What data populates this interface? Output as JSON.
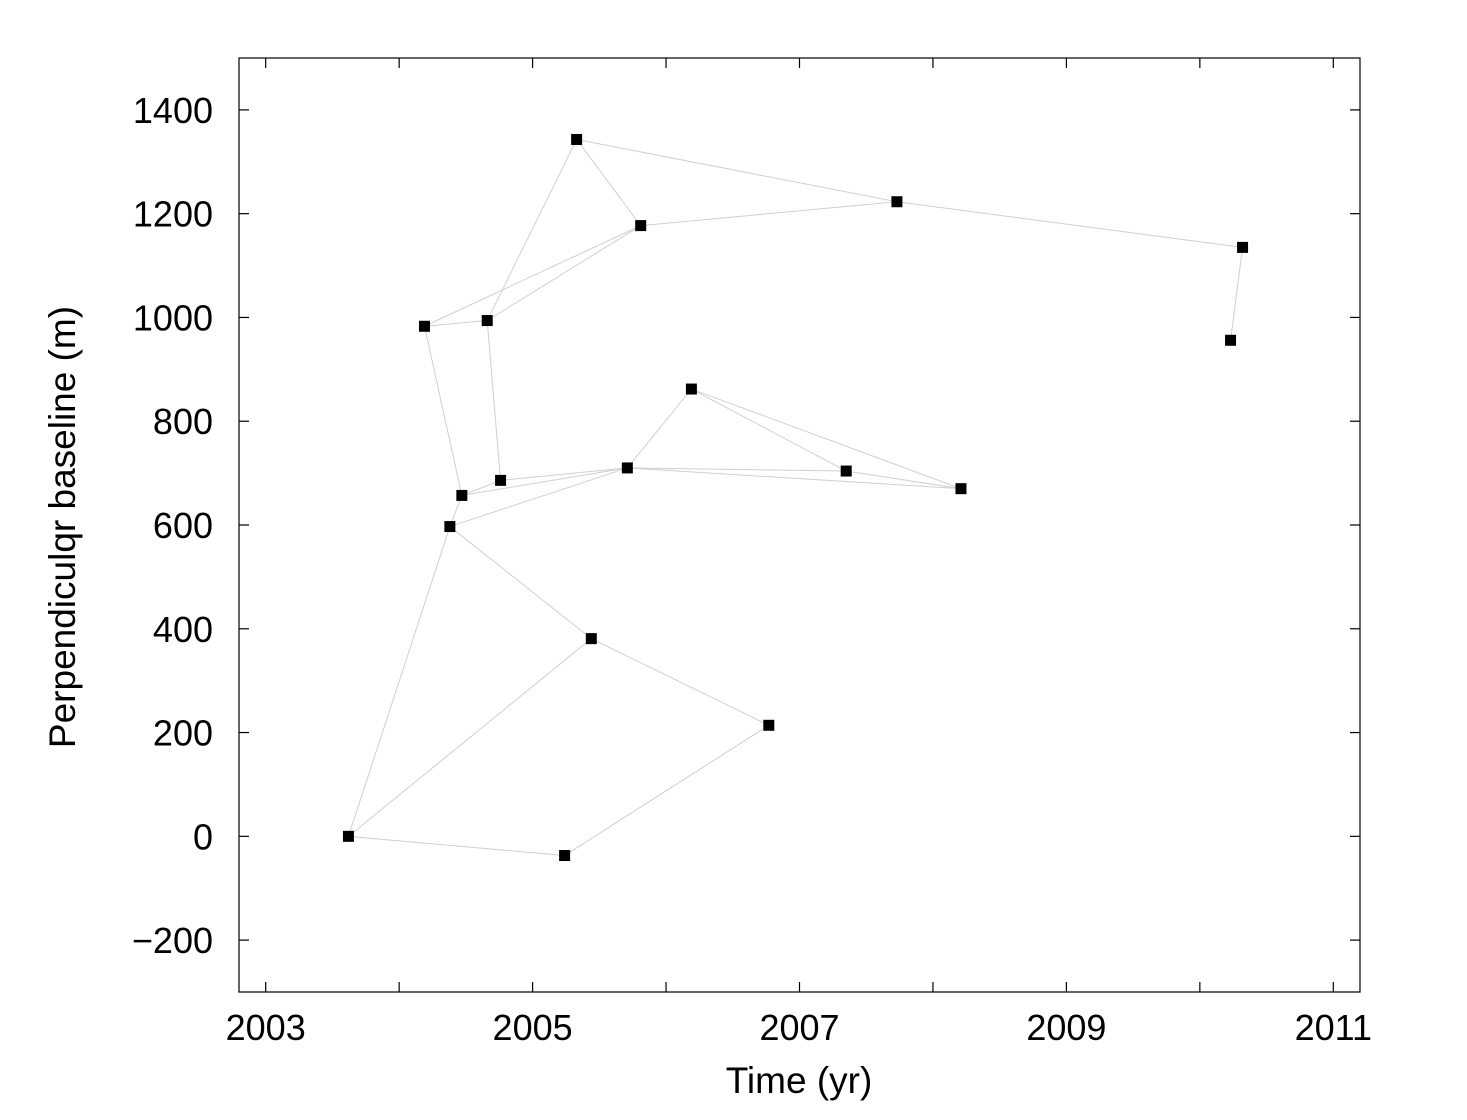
{
  "chart_data": {
    "type": "scatter",
    "title": "",
    "xlabel": "Time (yr)",
    "ylabel": "Perpendiculqr baseline (m)",
    "xlim": [
      2002.8,
      2011.2
    ],
    "ylim": [
      -300,
      1500
    ],
    "xticks": [
      2003,
      2004,
      2005,
      2006,
      2007,
      2008,
      2009,
      2010,
      2011
    ],
    "xtick_labels": [
      "2003",
      "",
      "2005",
      "",
      "2007",
      "",
      "2009",
      "",
      "2011"
    ],
    "yticks": [
      -200,
      0,
      200,
      400,
      600,
      800,
      1000,
      1200,
      1400
    ],
    "ytick_labels": [
      "−200",
      "0",
      "200",
      "400",
      "600",
      "800",
      "1000",
      "1200",
      "1400"
    ],
    "grid": false,
    "points": [
      {
        "x": 2003.62,
        "y": 0
      },
      {
        "x": 2004.19,
        "y": 983
      },
      {
        "x": 2004.38,
        "y": 597
      },
      {
        "x": 2004.47,
        "y": 657
      },
      {
        "x": 2004.66,
        "y": 994
      },
      {
        "x": 2004.76,
        "y": 686
      },
      {
        "x": 2005.24,
        "y": -37
      },
      {
        "x": 2005.33,
        "y": 1343
      },
      {
        "x": 2005.44,
        "y": 381
      },
      {
        "x": 2005.71,
        "y": 710
      },
      {
        "x": 2005.81,
        "y": 1177
      },
      {
        "x": 2006.19,
        "y": 862
      },
      {
        "x": 2006.77,
        "y": 214
      },
      {
        "x": 2007.35,
        "y": 704
      },
      {
        "x": 2007.73,
        "y": 1223
      },
      {
        "x": 2008.21,
        "y": 670
      },
      {
        "x": 2010.23,
        "y": 956
      },
      {
        "x": 2010.32,
        "y": 1135
      }
    ],
    "connections": [
      [
        0,
        6
      ],
      [
        0,
        8
      ],
      [
        0,
        2
      ],
      [
        6,
        12
      ],
      [
        12,
        8
      ],
      [
        8,
        2
      ],
      [
        2,
        9
      ],
      [
        2,
        3
      ],
      [
        3,
        5
      ],
      [
        3,
        1
      ],
      [
        3,
        9
      ],
      [
        5,
        4
      ],
      [
        5,
        9
      ],
      [
        1,
        4
      ],
      [
        1,
        10
      ],
      [
        4,
        7
      ],
      [
        4,
        10
      ],
      [
        7,
        10
      ],
      [
        7,
        14
      ],
      [
        10,
        14
      ],
      [
        14,
        17
      ],
      [
        17,
        16
      ],
      [
        9,
        11
      ],
      [
        9,
        13
      ],
      [
        9,
        15
      ],
      [
        11,
        13
      ],
      [
        11,
        15
      ],
      [
        13,
        15
      ]
    ],
    "marker": "square",
    "marker_color": "#000000",
    "line_color": "#d0d0d0"
  }
}
